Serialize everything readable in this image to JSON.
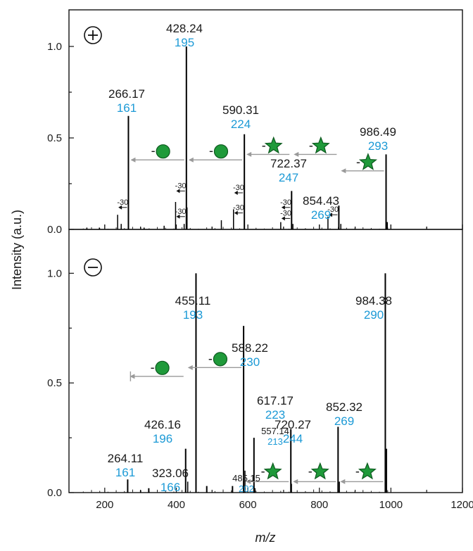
{
  "chart_data": [
    {
      "type": "bar",
      "panel": "positive",
      "mode_symbol": "+",
      "xlim": [
        100,
        1200
      ],
      "ylim": [
        0,
        1.2
      ],
      "yticks": [
        "0.0",
        "0.5",
        "1.0"
      ],
      "peaks": [
        {
          "mz": 266.17,
          "intensity": 0.62,
          "label": "266.17",
          "number": "161"
        },
        {
          "mz": 428.24,
          "intensity": 1.0,
          "label": "428.24",
          "number": "195"
        },
        {
          "mz": 590.31,
          "intensity": 0.52,
          "label": "590.31",
          "number": "224"
        },
        {
          "mz": 722.37,
          "intensity": 0.21,
          "label": "722.37",
          "number": "247"
        },
        {
          "mz": 854.43,
          "intensity": 0.13,
          "label": "854.43",
          "number": "269"
        },
        {
          "mz": 986.49,
          "intensity": 0.41,
          "label": "986.49",
          "number": "293"
        }
      ],
      "minor_peaks": [
        {
          "mz": 236,
          "intensity": 0.08
        },
        {
          "mz": 246,
          "intensity": 0.03
        },
        {
          "mz": 366,
          "intensity": 0.02
        },
        {
          "mz": 398,
          "intensity": 0.15
        },
        {
          "mz": 422,
          "intensity": 0.03
        },
        {
          "mz": 430,
          "intensity": 0.12
        },
        {
          "mz": 526,
          "intensity": 0.05
        },
        {
          "mz": 560,
          "intensity": 0.11
        },
        {
          "mz": 692,
          "intensity": 0.04
        },
        {
          "mz": 726,
          "intensity": 0.03
        },
        {
          "mz": 824,
          "intensity": 0.07
        },
        {
          "mz": 860,
          "intensity": 0.03
        },
        {
          "mz": 990,
          "intensity": 0.04
        },
        {
          "mz": 150,
          "intensity": 0.01
        },
        {
          "mz": 185,
          "intensity": 0.01
        },
        {
          "mz": 310,
          "intensity": 0.01
        }
      ],
      "loss_annotations": [
        {
          "from": 266.17,
          "to": 236,
          "y": 0.12,
          "text": "-30"
        },
        {
          "from": 428.24,
          "to": 398,
          "y": 0.07,
          "text": "-30"
        },
        {
          "from": 428.24,
          "to": 398,
          "y": 0.21,
          "text": "-30"
        },
        {
          "from": 590.31,
          "to": 560,
          "y": 0.09,
          "text": "-30"
        },
        {
          "from": 590.31,
          "to": 560,
          "y": 0.2,
          "text": "-30"
        },
        {
          "from": 722.37,
          "to": 692,
          "y": 0.06,
          "text": "-30"
        },
        {
          "from": 722.37,
          "to": 692,
          "y": 0.12,
          "text": "-30"
        },
        {
          "from": 854.43,
          "to": 824,
          "y": 0.08,
          "text": "-30"
        }
      ],
      "neutral_losses": [
        {
          "from": 428.24,
          "to": 266.17,
          "y": 0.38,
          "symbol": "circle",
          "prefix": "-"
        },
        {
          "from": 590.31,
          "to": 428.24,
          "y": 0.38,
          "symbol": "circle",
          "prefix": "-"
        },
        {
          "from": 722.37,
          "to": 590.31,
          "y": 0.41,
          "symbol": "star",
          "prefix": "-"
        },
        {
          "from": 854.43,
          "to": 722.37,
          "y": 0.41,
          "symbol": "star",
          "prefix": "-"
        },
        {
          "from": 986.49,
          "to": 854.43,
          "y": 0.32,
          "symbol": "star",
          "prefix": "-"
        }
      ]
    },
    {
      "type": "bar",
      "panel": "negative",
      "mode_symbol": "−",
      "xlim": [
        100,
        1200
      ],
      "ylim": [
        0,
        1.2
      ],
      "yticks": [
        "0.0",
        "0.5",
        "1.0"
      ],
      "xticks": [
        "200",
        "400",
        "600",
        "800",
        "1000",
        "1200"
      ],
      "xlabel": "m/z",
      "peaks": [
        {
          "mz": 264.11,
          "intensity": 0.06,
          "label": "264.11",
          "number": "161"
        },
        {
          "mz": 323.06,
          "intensity": 0.02,
          "label": "323.06",
          "number": "166"
        },
        {
          "mz": 426.16,
          "intensity": 0.2,
          "label": "426.16",
          "number": "196"
        },
        {
          "mz": 455.11,
          "intensity": 1.0,
          "label": "455.11",
          "number": "193"
        },
        {
          "mz": 485.15,
          "intensity": 0.03,
          "label": "485.15",
          "number": "202",
          "small": true
        },
        {
          "mz": 557.14,
          "intensity": 0.03,
          "label": "557.14",
          "number": "213",
          "small": true
        },
        {
          "mz": 588.22,
          "intensity": 0.76,
          "label": "588.22",
          "number": "230"
        },
        {
          "mz": 617.17,
          "intensity": 0.25,
          "label": "617.17",
          "number": "223"
        },
        {
          "mz": 720.27,
          "intensity": 0.29,
          "label": "720.27",
          "number": "244"
        },
        {
          "mz": 852.32,
          "intensity": 0.3,
          "label": "852.32",
          "number": "269"
        },
        {
          "mz": 984.38,
          "intensity": 1.0,
          "label": "984.38",
          "number": "290"
        }
      ],
      "minor_peaks": [
        {
          "mz": 432,
          "intensity": 0.05
        },
        {
          "mz": 592,
          "intensity": 0.1
        },
        {
          "mz": 722,
          "intensity": 0.04
        },
        {
          "mz": 856,
          "intensity": 0.05
        },
        {
          "mz": 988,
          "intensity": 0.2
        },
        {
          "mz": 620,
          "intensity": 0.02
        },
        {
          "mz": 300,
          "intensity": 0.01
        }
      ],
      "neutral_losses": [
        {
          "from": 426.16,
          "to": 264.11,
          "y": 0.53,
          "symbol": "circle",
          "prefix": "-"
        },
        {
          "from": 588.22,
          "to": 426.16,
          "y": 0.57,
          "symbol": "circle",
          "prefix": "-"
        },
        {
          "from": 720.27,
          "to": 588.22,
          "y": 0.05,
          "symbol": "star",
          "prefix": "-"
        },
        {
          "from": 852.32,
          "to": 720.27,
          "y": 0.05,
          "symbol": "star",
          "prefix": "-"
        },
        {
          "from": 984.38,
          "to": 852.32,
          "y": 0.05,
          "symbol": "star",
          "prefix": "-"
        }
      ]
    }
  ],
  "axes": {
    "ylabel": "Intensity (a.u.)",
    "xlabel": "m/z"
  },
  "colors": {
    "peak": "#000000",
    "mz_label": "#1a1a1a",
    "number_label": "#1c9ad6",
    "arrow": "#9a9a9a",
    "symbol_fill": "#1f9a3a",
    "symbol_stroke": "#0d5a1f"
  }
}
